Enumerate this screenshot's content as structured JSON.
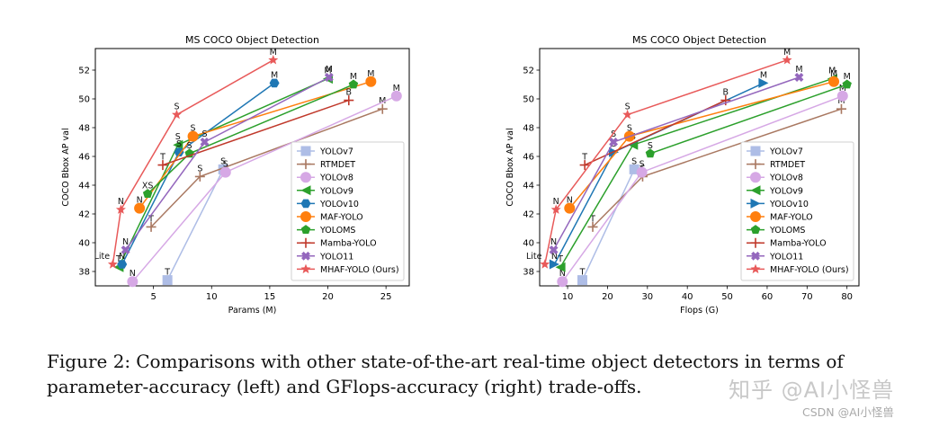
{
  "caption": {
    "label": "Figure 2:",
    "text": "Comparisons with other state-of-the-art real-time object detectors in terms of parameter-accuracy (left) and GFlops-accuracy (right) trade-offs."
  },
  "watermark": {
    "line1": "知乎 @AI小怪兽",
    "line2": "CSDN @AI小怪兽"
  },
  "chart_data": [
    {
      "type": "line",
      "title": "MS COCO Object Detection",
      "xlabel": "Params (M)",
      "ylabel": "COCO Bbox AP val",
      "xlim": [
        0,
        27
      ],
      "ylim": [
        37,
        53.5
      ],
      "xticks": [
        5,
        10,
        15,
        20,
        25
      ],
      "yticks": [
        38,
        40,
        42,
        44,
        46,
        48,
        50,
        52
      ],
      "grid": false,
      "legend": "lower-right",
      "series": [
        {
          "name": "YOLOv7",
          "color": "#aebde6",
          "marker": "square",
          "points": [
            [
              6.2,
              37.4,
              "T"
            ],
            [
              11.0,
              45.1,
              "S"
            ]
          ]
        },
        {
          "name": "RTMDET",
          "color": "#a97861",
          "marker": "plus",
          "points": [
            [
              4.8,
              41.1,
              "T"
            ],
            [
              9.0,
              44.6,
              "S"
            ],
            [
              24.7,
              49.3,
              "M"
            ]
          ]
        },
        {
          "name": "YOLOv8",
          "color": "#d6a8e5",
          "marker": "circle",
          "points": [
            [
              3.2,
              37.3,
              "N"
            ],
            [
              11.2,
              44.9,
              "S"
            ],
            [
              25.9,
              50.2,
              "M"
            ]
          ]
        },
        {
          "name": "YOLOv9",
          "color": "#2ca02c",
          "marker": "triangle-left",
          "points": [
            [
              2.0,
              38.3,
              "T"
            ],
            [
              7.1,
              46.8,
              "S"
            ],
            [
              20.0,
              51.4,
              "M"
            ]
          ]
        },
        {
          "name": "YOLOv10",
          "color": "#1f77b4",
          "marker": "hexagon",
          "points": [
            [
              2.3,
              38.5,
              "N"
            ],
            [
              7.2,
              46.3,
              "S"
            ],
            [
              15.4,
              51.1,
              "M"
            ]
          ]
        },
        {
          "name": "MAF-YOLO",
          "color": "#ff7f0e",
          "marker": "circle",
          "points": [
            [
              3.8,
              42.4,
              "N"
            ],
            [
              8.4,
              47.4,
              "S"
            ],
            [
              23.7,
              51.2,
              "M"
            ]
          ]
        },
        {
          "name": "YOLOMS",
          "color": "#2ca02c",
          "marker": "pentagon",
          "points": [
            [
              4.5,
              43.4,
              "XS"
            ],
            [
              8.1,
              46.2,
              "S"
            ],
            [
              22.2,
              51.0,
              "M"
            ]
          ]
        },
        {
          "name": "Mamba-YOLO",
          "color": "#c0392b",
          "marker": "plus",
          "points": [
            [
              5.8,
              45.4,
              "T"
            ],
            [
              21.8,
              49.9,
              "B"
            ]
          ]
        },
        {
          "name": "YOLO11",
          "color": "#9467bd",
          "marker": "x",
          "points": [
            [
              2.6,
              39.5,
              "N"
            ],
            [
              9.4,
              47.0,
              "S"
            ],
            [
              20.1,
              51.5,
              "M"
            ]
          ]
        },
        {
          "name": "MHAF-YOLO (Ours)",
          "color": "#e85a5a",
          "marker": "star",
          "points": [
            [
              1.5,
              38.5,
              "Lite"
            ],
            [
              2.2,
              42.3,
              "N"
            ],
            [
              7.0,
              48.9,
              "S"
            ],
            [
              15.3,
              52.7,
              "M"
            ]
          ]
        }
      ]
    },
    {
      "type": "line",
      "title": "MS COCO Object Detection",
      "xlabel": "Flops (G)",
      "ylabel": "COCO Bbox AP val",
      "xlim": [
        3,
        83
      ],
      "ylim": [
        37,
        53.5
      ],
      "xticks": [
        10,
        20,
        30,
        40,
        50,
        60,
        70,
        80
      ],
      "yticks": [
        38,
        40,
        42,
        44,
        46,
        48,
        50,
        52
      ],
      "grid": false,
      "legend": "lower-right",
      "series": [
        {
          "name": "YOLOv7",
          "color": "#aebde6",
          "marker": "square",
          "points": [
            [
              13.7,
              37.4,
              "T"
            ],
            [
              26.7,
              45.1,
              "S"
            ]
          ]
        },
        {
          "name": "RTMDET",
          "color": "#a97861",
          "marker": "plus",
          "points": [
            [
              16.3,
              41.1,
              "T"
            ],
            [
              28.8,
              44.6,
              "S"
            ],
            [
              78.6,
              49.3,
              "M"
            ]
          ]
        },
        {
          "name": "YOLOv8",
          "color": "#d6a8e5",
          "marker": "circle",
          "points": [
            [
              8.7,
              37.3,
              "N"
            ],
            [
              28.6,
              44.9,
              "S"
            ],
            [
              78.9,
              50.2,
              "M"
            ]
          ]
        },
        {
          "name": "YOLOv9",
          "color": "#2ca02c",
          "marker": "triangle-left",
          "points": [
            [
              8.2,
              38.3,
              "T"
            ],
            [
              26.4,
              46.8,
              "S"
            ],
            [
              76.3,
              51.4,
              "M"
            ]
          ]
        },
        {
          "name": "YOLOv10",
          "color": "#1f77b4",
          "marker": "triangle-right",
          "points": [
            [
              6.7,
              38.5,
              "N"
            ],
            [
              21.6,
              46.3,
              "S"
            ],
            [
              59.1,
              51.1,
              "M"
            ]
          ]
        },
        {
          "name": "MAF-YOLO",
          "color": "#ff7f0e",
          "marker": "circle",
          "points": [
            [
              10.5,
              42.4,
              "N"
            ],
            [
              25.5,
              47.4,
              "S"
            ],
            [
              76.7,
              51.2,
              "M"
            ]
          ]
        },
        {
          "name": "YOLOMS",
          "color": "#2ca02c",
          "marker": "pentagon",
          "points": [
            [
              30.7,
              46.2,
              "S"
            ],
            [
              80.0,
              51.0,
              "M"
            ]
          ]
        },
        {
          "name": "Mamba-YOLO",
          "color": "#c0392b",
          "marker": "plus",
          "points": [
            [
              14.3,
              45.4,
              "T"
            ],
            [
              49.6,
              49.9,
              "B"
            ]
          ]
        },
        {
          "name": "YOLO11",
          "color": "#9467bd",
          "marker": "x",
          "points": [
            [
              6.5,
              39.5,
              "N"
            ],
            [
              21.5,
              47.0,
              "S"
            ],
            [
              68.0,
              51.5,
              "M"
            ]
          ]
        },
        {
          "name": "MHAF-YOLO (Ours)",
          "color": "#e85a5a",
          "marker": "star",
          "points": [
            [
              4.3,
              38.5,
              "Lite"
            ],
            [
              7.1,
              42.3,
              "N"
            ],
            [
              25.0,
              48.9,
              "S"
            ],
            [
              65.0,
              52.7,
              "M"
            ]
          ]
        }
      ]
    }
  ]
}
